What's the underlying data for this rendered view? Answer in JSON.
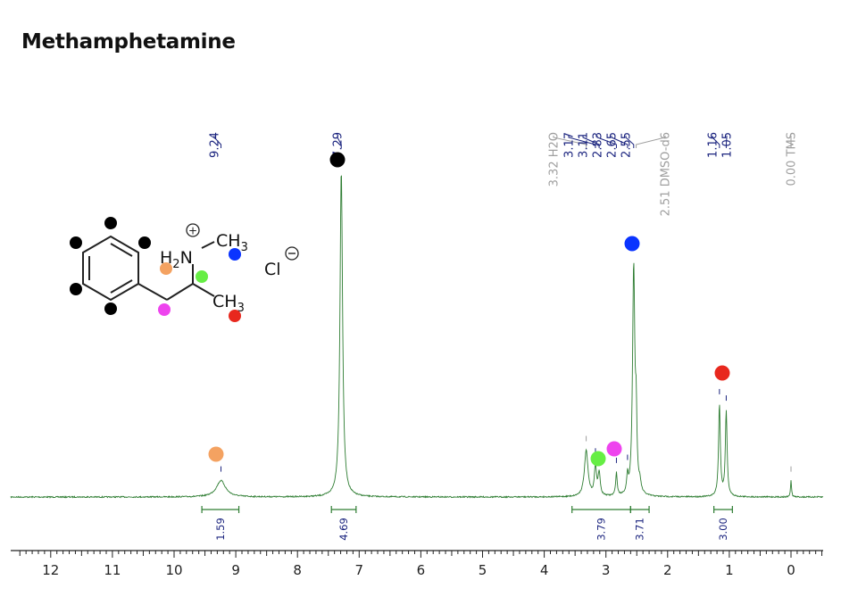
{
  "chart_data": {
    "type": "line",
    "title": "Methamphetamine",
    "xlim": [
      12.5,
      -0.5
    ],
    "xticks": [
      12,
      11,
      10,
      9,
      8,
      7,
      6,
      5,
      4,
      3,
      2,
      1,
      0
    ],
    "peak_labels": [
      {
        "text": "9.24",
        "ppm": 9.24,
        "color": "#1a237e"
      },
      {
        "text": "7.29",
        "ppm": 7.29,
        "color": "#1a237e"
      },
      {
        "text": "3.32 H2O",
        "ppm": 3.32,
        "color": "#9e9e9e"
      },
      {
        "text": "3.17",
        "ppm": 3.17,
        "color": "#1a237e"
      },
      {
        "text": "3.11",
        "ppm": 3.11,
        "color": "#1a237e"
      },
      {
        "text": "2.83",
        "ppm": 2.83,
        "color": "#1a237e"
      },
      {
        "text": "2.65",
        "ppm": 2.65,
        "color": "#1a237e"
      },
      {
        "text": "2.55",
        "ppm": 2.55,
        "color": "#1a237e"
      },
      {
        "text": "2.51 DMSO-d6",
        "ppm": 2.51,
        "color": "#9e9e9e"
      },
      {
        "text": "1.16",
        "ppm": 1.16,
        "color": "#1a237e"
      },
      {
        "text": "1.05",
        "ppm": 1.05,
        "color": "#1a237e"
      },
      {
        "text": "0.00 TMS",
        "ppm": 0.0,
        "color": "#9e9e9e"
      }
    ],
    "integrals": [
      {
        "value": "1.59",
        "from": 9.55,
        "to": 8.95
      },
      {
        "value": "4.69",
        "from": 7.45,
        "to": 7.05
      },
      {
        "value": "3.79",
        "from": 3.55,
        "to": 2.6
      },
      {
        "value": "3.71",
        "from": 2.6,
        "to": 2.3
      },
      {
        "value": "3.00",
        "from": 1.25,
        "to": 0.95
      }
    ],
    "peaks": [
      {
        "ppm": 9.24,
        "height": 0.05,
        "width": 0.09
      },
      {
        "ppm": 7.29,
        "height": 1.0,
        "width": 0.025
      },
      {
        "ppm": 3.32,
        "height": 0.14,
        "width": 0.035
      },
      {
        "ppm": 3.17,
        "height": 0.09,
        "width": 0.02
      },
      {
        "ppm": 3.11,
        "height": 0.07,
        "width": 0.02
      },
      {
        "ppm": 2.83,
        "height": 0.07,
        "width": 0.015
      },
      {
        "ppm": 2.65,
        "height": 0.05,
        "width": 0.015
      },
      {
        "ppm": 2.55,
        "height": 0.7,
        "width": 0.022
      },
      {
        "ppm": 2.51,
        "height": 0.2,
        "width": 0.014
      },
      {
        "ppm": 2.45,
        "height": 0.03,
        "width": 0.02
      },
      {
        "ppm": 1.16,
        "height": 0.28,
        "width": 0.017
      },
      {
        "ppm": 1.05,
        "height": 0.26,
        "width": 0.017
      },
      {
        "ppm": 0.0,
        "height": 0.05,
        "width": 0.01
      }
    ],
    "markers": [
      {
        "name": "aromatic-h",
        "color": "#000000",
        "ppm": 7.29
      },
      {
        "name": "nh2",
        "color": "#f4a261",
        "ppm": 9.24
      },
      {
        "name": "n-ch3",
        "color": "#0a34ff",
        "ppm": 2.55
      },
      {
        "name": "ch",
        "color": "#66ee44",
        "ppm": 3.11
      },
      {
        "name": "ch2",
        "color": "#ee44ee",
        "ppm": 2.83
      },
      {
        "name": "c-ch3",
        "color": "#e8281e",
        "ppm": 1.1
      }
    ],
    "line_color": "#2e7d32",
    "integral_color": "#2e7d32"
  },
  "molecule": {
    "amine": "H2N",
    "amine_charge": "+",
    "methyl_n": "CH3",
    "methyl_c": "CH3",
    "counterion": "Cl",
    "counterion_charge": "−"
  }
}
